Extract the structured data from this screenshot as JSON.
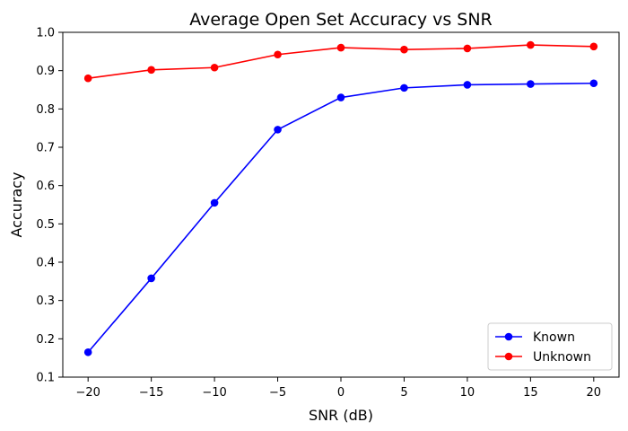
{
  "chart_data": {
    "type": "line",
    "title": "Average Open Set Accuracy vs SNR",
    "xlabel": "SNR (dB)",
    "ylabel": "Accuracy",
    "x": [
      -20,
      -15,
      -10,
      -5,
      0,
      5,
      10,
      15,
      20
    ],
    "xlim": [
      -22,
      22
    ],
    "ylim": [
      0.1,
      1.0
    ],
    "xticks": [
      -20,
      -15,
      -10,
      -5,
      0,
      5,
      10,
      15,
      20
    ],
    "yticks": [
      0.1,
      0.2,
      0.3,
      0.4,
      0.5,
      0.6,
      0.7,
      0.8,
      0.9,
      1.0
    ],
    "grid": false,
    "legend_position": "bottom-right",
    "series": [
      {
        "name": "Known",
        "color": "#0000ff",
        "marker": "circle",
        "values": [
          0.165,
          0.358,
          0.555,
          0.746,
          0.83,
          0.855,
          0.863,
          0.865,
          0.867
        ]
      },
      {
        "name": "Unknown",
        "color": "#ff0000",
        "marker": "circle",
        "values": [
          0.88,
          0.902,
          0.908,
          0.942,
          0.96,
          0.955,
          0.958,
          0.967,
          0.963
        ]
      }
    ]
  }
}
